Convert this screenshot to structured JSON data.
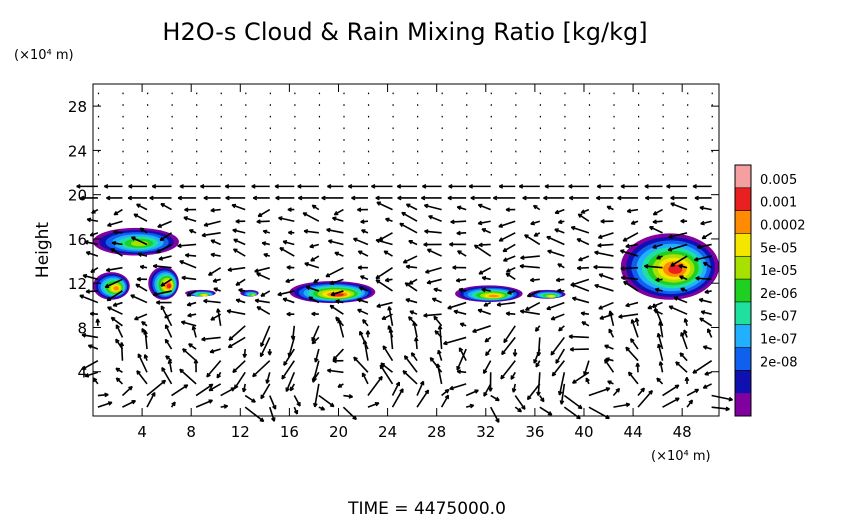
{
  "chart_data": {
    "type": "quiver-contour",
    "title": "H2O-s Cloud & Rain Mixing Ratio [kg/kg]",
    "ylabel": "Height",
    "yunit": "(×10⁴ m)",
    "xunit": "(×10⁴ m)",
    "time_label": "TIME = 4475000.0",
    "xlim": [
      0,
      51
    ],
    "ylim": [
      0,
      30
    ],
    "x_ticks": [
      "4",
      "8",
      "12",
      "16",
      "20",
      "24",
      "28",
      "32",
      "36",
      "40",
      "44",
      "48"
    ],
    "y_ticks": [
      "4",
      "8",
      "12",
      "16",
      "20",
      "24",
      "28"
    ],
    "colorbar": {
      "labels": [
        "0.005",
        "0.001",
        "0.0002",
        "5e-05",
        "1e-05",
        "2e-06",
        "5e-07",
        "1e-07",
        "2e-08"
      ],
      "colors": [
        "#f4a0a0",
        "#e82020",
        "#ff8c00",
        "#f5e600",
        "#a8e000",
        "#20d020",
        "#20e0a0",
        "#20b0ff",
        "#1060f0",
        "#1010b0",
        "#8000a0"
      ]
    },
    "cloud_regions": [
      {
        "name": "upper-left anvil",
        "x": [
          0,
          7
        ],
        "y": [
          14.5,
          17
        ],
        "max_level": "1e-05"
      },
      {
        "name": "left cluster A",
        "x": [
          0,
          3
        ],
        "y": [
          10.5,
          13
        ],
        "max_level": "0.0002"
      },
      {
        "name": "left cluster B",
        "x": [
          4.5,
          7
        ],
        "y": [
          10.5,
          13.5
        ],
        "max_level": "0.001"
      },
      {
        "name": "left layer",
        "x": [
          7.5,
          10
        ],
        "y": [
          10.8,
          11.4
        ],
        "max_level": "5e-05"
      },
      {
        "name": "layer near 12",
        "x": [
          12,
          13.5
        ],
        "y": [
          10.8,
          11.4
        ],
        "max_level": "1e-05"
      },
      {
        "name": "central cluster",
        "x": [
          16,
          23
        ],
        "y": [
          10.2,
          12.2
        ],
        "max_level": "0.001"
      },
      {
        "name": "right-central cluster",
        "x": [
          29.5,
          35
        ],
        "y": [
          10.3,
          11.8
        ],
        "max_level": "0.0002"
      },
      {
        "name": "right-central layer",
        "x": [
          35.5,
          38.5
        ],
        "y": [
          10.6,
          11.4
        ],
        "max_level": "5e-05"
      },
      {
        "name": "right anvil",
        "x": [
          43,
          51
        ],
        "y": [
          10.5,
          16.5
        ],
        "max_level": "0.001"
      }
    ]
  }
}
